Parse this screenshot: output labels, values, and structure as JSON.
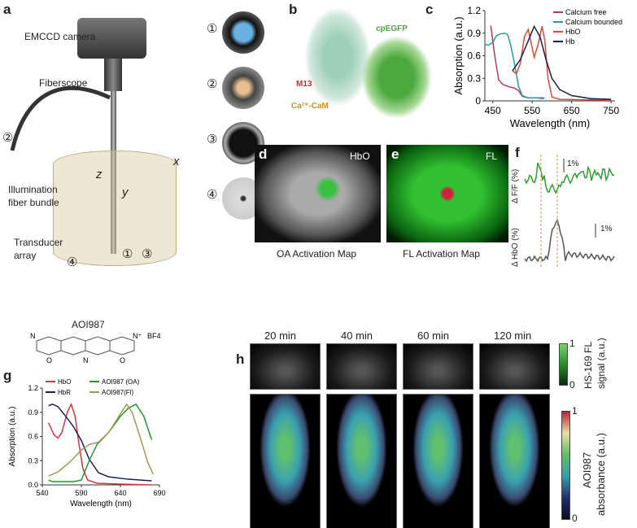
{
  "panels": {
    "a": {
      "label": "a",
      "camera": "EMCCD camera",
      "fiberscope": "Fiberscope",
      "bundle_marker": "②",
      "illumination": [
        "Illumination",
        "fiber bundle"
      ],
      "transducer": [
        "Transducer",
        "array"
      ],
      "axes": {
        "x": "x",
        "y": "y",
        "z": "z"
      },
      "markers": [
        "①",
        "③",
        "④"
      ],
      "photos": [
        "①",
        "②",
        "③",
        "④"
      ]
    },
    "b": {
      "label": "b",
      "cpegfp": "cpEGFP",
      "m13": "M13",
      "cam": "Ca²⁺-CaM"
    },
    "c": {
      "label": "c"
    },
    "d": {
      "label": "d",
      "tag": "HbO",
      "caption": "OA Activation Map"
    },
    "e": {
      "label": "e",
      "tag": "FL",
      "caption": "FL Activation Map"
    },
    "f": {
      "label": "f",
      "ylabel_top": "Δ F/F (%)",
      "ylabel_bottom": "Δ HbO (%)",
      "scale_top": "1%",
      "scale_bottom": "1%"
    },
    "g": {
      "label": "g",
      "compound": "AOI987",
      "counterion": "BF4",
      "atoms": [
        "N",
        "N⁺",
        "O",
        "N",
        "O"
      ]
    },
    "h": {
      "label": "h",
      "times": [
        "20 min",
        "40 min",
        "60 min",
        "120 min"
      ],
      "colorbar_top": {
        "label": [
          "HS-169 FL",
          "signal (a.u.)"
        ],
        "max": "1",
        "min": "0"
      },
      "colorbar_bottom": {
        "label": [
          "AOI987",
          "absorbance (a.u.)"
        ],
        "max": "1",
        "min": "0"
      }
    }
  },
  "chart_data": [
    {
      "id": "c",
      "type": "line",
      "xlabel": "Wavelength (nm)",
      "ylabel": "Absorption (a.u.)",
      "xlim": [
        430,
        760
      ],
      "ylim": [
        0,
        1.2
      ],
      "xticks": [
        450,
        550,
        650,
        750
      ],
      "yticks": [
        0,
        0.3,
        0.6,
        0.9,
        1.2
      ],
      "ytick_labels": [
        "0",
        "0.3",
        "0.6",
        "0.9",
        "1.2"
      ],
      "legend": "top-right",
      "series": [
        {
          "name": "Calcium free",
          "color": "#b03a5a",
          "points": [
            [
              445,
              1.0
            ],
            [
              455,
              0.6
            ],
            [
              465,
              0.28
            ],
            [
              475,
              0.22
            ],
            [
              490,
              0.19
            ],
            [
              505,
              0.17
            ],
            [
              515,
              0.14
            ],
            [
              525,
              0.06
            ],
            [
              540,
              0.04
            ],
            [
              560,
              0.04
            ],
            [
              580,
              0.03
            ]
          ]
        },
        {
          "name": "Calcium bounded",
          "color": "#2a9a9a",
          "points": [
            [
              430,
              0.75
            ],
            [
              440,
              0.74
            ],
            [
              450,
              0.78
            ],
            [
              460,
              0.87
            ],
            [
              470,
              0.89
            ],
            [
              480,
              0.9
            ],
            [
              488,
              0.88
            ],
            [
              495,
              0.75
            ],
            [
              505,
              0.5
            ],
            [
              515,
              0.2
            ],
            [
              525,
              0.07
            ],
            [
              540,
              0.04
            ],
            [
              560,
              0.04
            ],
            [
              580,
              0.04
            ]
          ]
        },
        {
          "name": "HbO",
          "color": "#e0483a",
          "points": [
            [
              500,
              0.4
            ],
            [
              510,
              0.36
            ],
            [
              520,
              0.5
            ],
            [
              530,
              0.85
            ],
            [
              540,
              0.95
            ],
            [
              548,
              0.75
            ],
            [
              555,
              0.58
            ],
            [
              565,
              0.75
            ],
            [
              575,
              0.99
            ],
            [
              582,
              0.8
            ],
            [
              590,
              0.3
            ],
            [
              600,
              0.05
            ],
            [
              620,
              0.02
            ],
            [
              750,
              0.01
            ]
          ]
        },
        {
          "name": "Hb",
          "color": "#1a1f4a",
          "points": [
            [
              500,
              0.4
            ],
            [
              520,
              0.55
            ],
            [
              540,
              0.8
            ],
            [
              555,
              0.99
            ],
            [
              570,
              0.85
            ],
            [
              585,
              0.55
            ],
            [
              600,
              0.3
            ],
            [
              620,
              0.15
            ],
            [
              650,
              0.07
            ],
            [
              700,
              0.03
            ],
            [
              750,
              0.02
            ]
          ]
        }
      ]
    },
    {
      "id": "g",
      "type": "line",
      "xlabel": "Wavelength (nm)",
      "ylabel": "Absorption (a.u.)",
      "xlim": [
        540,
        690
      ],
      "ylim": [
        0,
        1.2
      ],
      "xticks": [
        540,
        590,
        640,
        690
      ],
      "yticks": [
        0,
        0.3,
        0.6,
        0.9,
        1.2
      ],
      "ytick_labels": [
        "0.0",
        "0.3",
        "0.6",
        "0.9",
        "1.2"
      ],
      "legend": "top",
      "series": [
        {
          "name": "HbO",
          "color": "#e03040",
          "points": [
            [
              548,
              0.77
            ],
            [
              555,
              0.62
            ],
            [
              560,
              0.58
            ],
            [
              565,
              0.65
            ],
            [
              572,
              0.9
            ],
            [
              577,
              1.0
            ],
            [
              582,
              0.85
            ],
            [
              587,
              0.5
            ],
            [
              592,
              0.2
            ],
            [
              598,
              0.06
            ],
            [
              610,
              0.02
            ],
            [
              640,
              0.01
            ],
            [
              680,
              0.0
            ]
          ]
        },
        {
          "name": "HbR",
          "color": "#1a1f5a",
          "points": [
            [
              548,
              0.98
            ],
            [
              553,
              1.0
            ],
            [
              560,
              0.97
            ],
            [
              570,
              0.85
            ],
            [
              580,
              0.72
            ],
            [
              590,
              0.55
            ],
            [
              600,
              0.32
            ],
            [
              612,
              0.15
            ],
            [
              625,
              0.1
            ],
            [
              650,
              0.07
            ],
            [
              680,
              0.05
            ]
          ]
        },
        {
          "name": "AOI987 (OA)",
          "color": "#1e9a2a",
          "points": [
            [
              548,
              0.06
            ],
            [
              553,
              0.04
            ],
            [
              570,
              0.04
            ],
            [
              580,
              0.04
            ],
            [
              590,
              0.06
            ],
            [
              600,
              0.3
            ],
            [
              610,
              0.5
            ],
            [
              625,
              0.65
            ],
            [
              640,
              0.85
            ],
            [
              650,
              0.95
            ],
            [
              660,
              1.0
            ],
            [
              670,
              0.85
            ],
            [
              680,
              0.56
            ]
          ]
        },
        {
          "name": "AOI987(Fl)",
          "color": "#a09a50",
          "points": [
            [
              548,
              0.11
            ],
            [
              560,
              0.16
            ],
            [
              575,
              0.28
            ],
            [
              590,
              0.43
            ],
            [
              600,
              0.5
            ],
            [
              612,
              0.53
            ],
            [
              625,
              0.65
            ],
            [
              640,
              0.88
            ],
            [
              648,
              1.0
            ],
            [
              655,
              0.9
            ],
            [
              665,
              0.6
            ],
            [
              675,
              0.28
            ],
            [
              682,
              0.13
            ]
          ]
        }
      ]
    }
  ]
}
